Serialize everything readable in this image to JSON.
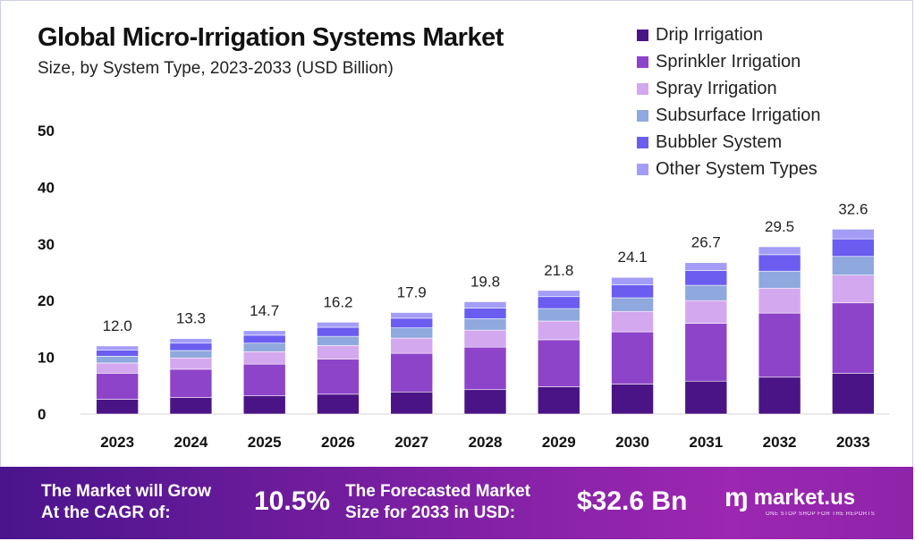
{
  "header": {
    "title": "Global Micro-Irrigation Systems Market",
    "subtitle": "Size, by System Type, 2023-2033 (USD Billion)"
  },
  "colors": {
    "drip": "#4a1486",
    "sprinkler": "#8e44c9",
    "spray": "#d4a8ef",
    "subsurface": "#8fa8de",
    "bubbler": "#6a5df0",
    "other": "#a39df7"
  },
  "legend": [
    {
      "label": "Drip Irrigation",
      "color": "#4a1486"
    },
    {
      "label": "Sprinkler Irrigation",
      "color": "#8e44c9"
    },
    {
      "label": "Spray Irrigation",
      "color": "#d4a8ef"
    },
    {
      "label": "Subsurface Irrigation",
      "color": "#8fa8de"
    },
    {
      "label": "Bubbler System",
      "color": "#6a5df0"
    },
    {
      "label": "Other System Types",
      "color": "#a39df7"
    }
  ],
  "chart_data": {
    "type": "bar",
    "stacked": true,
    "title": "Global Micro-Irrigation Systems Market",
    "subtitle": "Size, by System Type, 2023-2033 (USD Billion)",
    "xlabel": "",
    "ylabel": "",
    "ylim": [
      0,
      50
    ],
    "yticks": [
      "0",
      "10",
      "20",
      "30",
      "40",
      "50"
    ],
    "categories": [
      "2023",
      "2024",
      "2025",
      "2026",
      "2027",
      "2028",
      "2029",
      "2030",
      "2031",
      "2032",
      "2033"
    ],
    "totals": [
      "12.0",
      "13.3",
      "14.7",
      "16.2",
      "17.9",
      "19.8",
      "21.8",
      "24.1",
      "26.7",
      "29.5",
      "32.6"
    ],
    "series": [
      {
        "name": "Drip Irrigation",
        "values": [
          2.6,
          2.9,
          3.2,
          3.5,
          3.9,
          4.3,
          4.8,
          5.3,
          5.8,
          6.5,
          7.2
        ]
      },
      {
        "name": "Sprinkler Irrigation",
        "values": [
          4.6,
          5.0,
          5.6,
          6.2,
          6.8,
          7.5,
          8.3,
          9.2,
          10.2,
          11.3,
          12.4
        ]
      },
      {
        "name": "Spray Irrigation",
        "values": [
          1.8,
          2.0,
          2.2,
          2.4,
          2.7,
          3.0,
          3.3,
          3.6,
          4.0,
          4.4,
          4.9
        ]
      },
      {
        "name": "Subsurface Irrigation",
        "values": [
          1.2,
          1.3,
          1.5,
          1.6,
          1.8,
          2.0,
          2.2,
          2.4,
          2.7,
          3.0,
          3.3
        ]
      },
      {
        "name": "Bubbler System",
        "values": [
          1.1,
          1.3,
          1.4,
          1.6,
          1.7,
          1.9,
          2.1,
          2.3,
          2.6,
          2.9,
          3.1
        ]
      },
      {
        "name": "Other System Types",
        "values": [
          0.7,
          0.8,
          0.8,
          0.9,
          1.0,
          1.1,
          1.1,
          1.3,
          1.4,
          1.4,
          1.7
        ]
      }
    ]
  },
  "banner": {
    "cagr_label_line1": "The Market will Grow",
    "cagr_label_line2": "At the CAGR of:",
    "cagr_value": "10.5%",
    "forecast_label_line1": "The Forecasted Market",
    "forecast_label_line2": "Size for 2033 in USD:",
    "forecast_value": "$32.6 Bn",
    "logo_mark": "ɱ",
    "logo_text": "market.us",
    "logo_tagline": "ONE STOP SHOP FOR THE REPORTS"
  }
}
